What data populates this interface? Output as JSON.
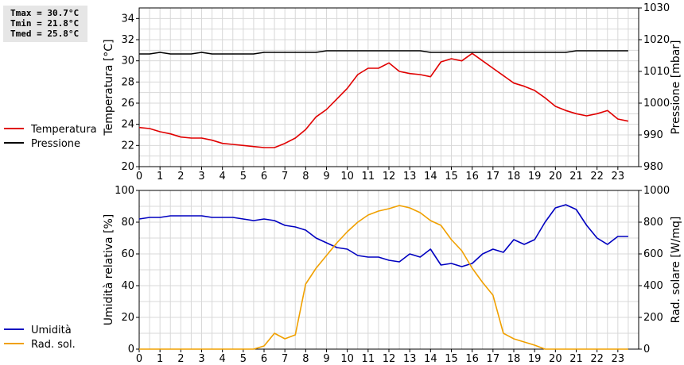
{
  "stats": {
    "tmax": "Tmax = 30.7°C",
    "tmin": "Tmin = 21.8°C",
    "tmed": "Tmed = 25.8°C"
  },
  "colors": {
    "temperatura": "#e00000",
    "pressione": "#000000",
    "umidita": "#0000c0",
    "radiazione": "#f0a000",
    "grid": "#d8d8d8"
  },
  "chart_data": [
    {
      "type": "line",
      "x_ticks": [
        "0",
        "1",
        "2",
        "3",
        "4",
        "5",
        "6",
        "7",
        "8",
        "9",
        "10",
        "11",
        "12",
        "13",
        "14",
        "15",
        "16",
        "17",
        "18",
        "19",
        "20",
        "21",
        "22",
        "23"
      ],
      "xlim": [
        0,
        24
      ],
      "ylabel": "Temperatura [°C]",
      "ylim": [
        20,
        35
      ],
      "y_ticks": [
        "20",
        "22",
        "24",
        "26",
        "28",
        "30",
        "32",
        "34"
      ],
      "y2label": "Pressione [mbar]",
      "y2lim": [
        980,
        1030
      ],
      "y2_ticks": [
        "980",
        "990",
        "1000",
        "1010",
        "1020",
        "1030"
      ],
      "legend_placement": "left",
      "grid": true,
      "series": [
        {
          "name": "Temperatura",
          "axis": "left",
          "x": [
            0,
            0.5,
            1,
            1.5,
            2,
            2.5,
            3,
            3.5,
            4,
            4.5,
            5,
            5.5,
            6,
            6.5,
            7,
            7.5,
            8,
            8.5,
            9,
            9.5,
            10,
            10.5,
            11,
            11.5,
            12,
            12.5,
            13,
            13.5,
            14,
            14.5,
            15,
            15.5,
            16,
            16.5,
            17,
            17.5,
            18,
            18.5,
            19,
            19.5,
            20,
            20.5,
            21,
            21.5,
            22,
            22.5,
            23,
            23.5
          ],
          "y": [
            23.7,
            23.6,
            23.3,
            23.1,
            22.8,
            22.7,
            22.7,
            22.5,
            22.2,
            22.1,
            22.0,
            21.9,
            21.8,
            21.8,
            22.2,
            22.7,
            23.5,
            24.7,
            25.4,
            26.4,
            27.4,
            28.7,
            29.3,
            29.3,
            29.8,
            29.0,
            28.8,
            28.7,
            28.5,
            29.9,
            30.2,
            30.0,
            30.7,
            30.0,
            29.3,
            28.6,
            27.9,
            27.6,
            27.2,
            26.5,
            25.7,
            25.3,
            25.0,
            24.8,
            25.0,
            25.3,
            24.5,
            24.3
          ]
        },
        {
          "name": "Pressione",
          "axis": "right",
          "x": [
            0,
            0.5,
            1,
            1.5,
            2,
            2.5,
            3,
            3.5,
            4,
            4.5,
            5,
            5.5,
            6,
            6.5,
            7,
            7.5,
            8,
            8.5,
            9,
            9.5,
            10,
            10.5,
            11,
            11.5,
            12,
            12.5,
            13,
            13.5,
            14,
            14.5,
            15,
            15.5,
            16,
            16.5,
            17,
            17.5,
            18,
            18.5,
            19,
            19.5,
            20,
            20.5,
            21,
            21.5,
            22,
            22.5,
            23,
            23.5
          ],
          "y": [
            1015.5,
            1015.5,
            1016,
            1015.5,
            1015.5,
            1015.5,
            1016,
            1015.5,
            1015.5,
            1015.5,
            1015.5,
            1015.5,
            1016,
            1016,
            1016,
            1016,
            1016,
            1016,
            1016.5,
            1016.5,
            1016.5,
            1016.5,
            1016.5,
            1016.5,
            1016.5,
            1016.5,
            1016.5,
            1016.5,
            1016,
            1016,
            1016,
            1016,
            1016,
            1016,
            1016,
            1016,
            1016,
            1016,
            1016,
            1016,
            1016,
            1016,
            1016.5,
            1016.5,
            1016.5,
            1016.5,
            1016.5,
            1016.5
          ]
        }
      ]
    },
    {
      "type": "line",
      "x_ticks": [
        "0",
        "1",
        "2",
        "3",
        "4",
        "5",
        "6",
        "7",
        "8",
        "9",
        "10",
        "11",
        "12",
        "13",
        "14",
        "15",
        "16",
        "17",
        "18",
        "19",
        "20",
        "21",
        "22",
        "23"
      ],
      "xlim": [
        0,
        24
      ],
      "ylabel": "Umidità relativa [%]",
      "ylim": [
        0,
        100
      ],
      "y_ticks": [
        "0",
        "20",
        "40",
        "60",
        "80",
        "100"
      ],
      "y2label": "Rad. solare [W/mq]",
      "y2lim": [
        0,
        1000
      ],
      "y2_ticks": [
        "0",
        "200",
        "400",
        "600",
        "800",
        "1000"
      ],
      "legend_placement": "left",
      "grid": true,
      "series": [
        {
          "name": "Umidità",
          "axis": "left",
          "x": [
            0,
            0.5,
            1,
            1.5,
            2,
            2.5,
            3,
            3.5,
            4,
            4.5,
            5,
            5.5,
            6,
            6.5,
            7,
            7.5,
            8,
            8.5,
            9,
            9.5,
            10,
            10.5,
            11,
            11.5,
            12,
            12.5,
            13,
            13.5,
            14,
            14.5,
            15,
            15.5,
            16,
            16.5,
            17,
            17.5,
            18,
            18.5,
            19,
            19.5,
            20,
            20.5,
            21,
            21.5,
            22,
            22.5,
            23,
            23.5
          ],
          "y": [
            82,
            83,
            83,
            84,
            84,
            84,
            84,
            83,
            83,
            83,
            82,
            81,
            82,
            81,
            78,
            77,
            75,
            70,
            67,
            64,
            63,
            59,
            58,
            58,
            56,
            55,
            60,
            58,
            63,
            53,
            54,
            52,
            54,
            60,
            63,
            61,
            69,
            66,
            69,
            80,
            89,
            91,
            88,
            78,
            70,
            66,
            71,
            71
          ]
        },
        {
          "name": "Rad. sol.",
          "axis": "right",
          "x": [
            0,
            0.5,
            1,
            1.5,
            2,
            2.5,
            3,
            3.5,
            4,
            4.5,
            5,
            5.5,
            6,
            6.5,
            7,
            7.5,
            8,
            8.5,
            9,
            9.5,
            10,
            10.5,
            11,
            11.5,
            12,
            12.5,
            13,
            13.5,
            14,
            14.5,
            15,
            15.5,
            16,
            16.5,
            17,
            17.5,
            18,
            18.5,
            19,
            19.5,
            20,
            20.5,
            21,
            21.5,
            22,
            22.5,
            23,
            23.5
          ],
          "y": [
            0,
            0,
            0,
            0,
            0,
            0,
            0,
            0,
            0,
            0,
            0,
            0,
            20,
            100,
            65,
            90,
            410,
            510,
            590,
            670,
            740,
            800,
            845,
            870,
            885,
            905,
            890,
            860,
            810,
            780,
            690,
            620,
            510,
            420,
            340,
            100,
            65,
            45,
            25,
            0,
            0,
            0,
            0,
            0,
            0,
            0,
            0,
            0
          ]
        }
      ]
    }
  ]
}
